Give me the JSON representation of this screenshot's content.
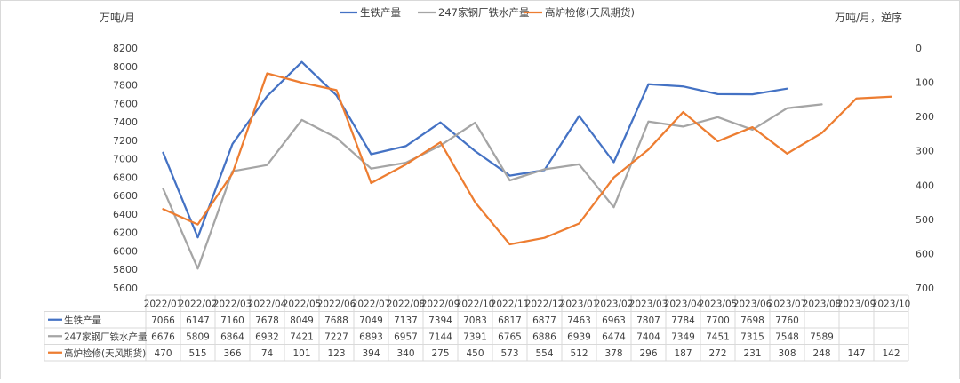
{
  "chart_data": {
    "type": "line",
    "title": "",
    "ylabel_left": "万吨/月",
    "ylabel_right": "万吨/月，逆序",
    "left_axis": {
      "min": 5600,
      "max": 8200,
      "ticks": [
        5600,
        5800,
        6000,
        6200,
        6400,
        6600,
        6800,
        7000,
        7200,
        7400,
        7600,
        7800,
        8000,
        8200
      ]
    },
    "right_axis": {
      "min": 0,
      "max": 700,
      "reversed": true,
      "ticks": [
        0,
        100,
        200,
        300,
        400,
        500,
        600,
        700
      ]
    },
    "categories": [
      "2022/01",
      "2022/02",
      "2022/03",
      "2022/04",
      "2022/05",
      "2022/06",
      "2022/07",
      "2022/08",
      "2022/09",
      "2022/10",
      "2022/11",
      "2022/12",
      "2023/01",
      "2023/02",
      "2023/03",
      "2023/04",
      "2023/05",
      "2023/06",
      "2023/07",
      "2023/08",
      "2023/09",
      "2023/10"
    ],
    "legend_position": "top",
    "grid": false,
    "series": [
      {
        "name": "生铁产量",
        "axis": "left",
        "color": "#4472C4",
        "values": [
          7066,
          6147,
          7160,
          7678,
          8049,
          7688,
          7049,
          7137,
          7394,
          7083,
          6817,
          6877,
          7463,
          6963,
          7807,
          7784,
          7700,
          7698,
          7760,
          null,
          null,
          null
        ]
      },
      {
        "name": "247家钢厂铁水产量",
        "axis": "left",
        "color": "#A5A5A5",
        "values": [
          6676,
          5809,
          6864,
          6932,
          7421,
          7227,
          6893,
          6957,
          7144,
          7391,
          6765,
          6886,
          6939,
          6474,
          7404,
          7349,
          7451,
          7315,
          7548,
          7589,
          null,
          null
        ]
      },
      {
        "name": "高炉检修(天风期货)",
        "axis": "right",
        "color": "#ED7D31",
        "values": [
          470,
          515,
          366,
          74,
          101,
          123,
          394,
          340,
          275,
          450,
          573,
          554,
          512,
          378,
          296,
          187,
          272,
          231,
          308,
          248,
          147,
          142
        ]
      }
    ]
  }
}
